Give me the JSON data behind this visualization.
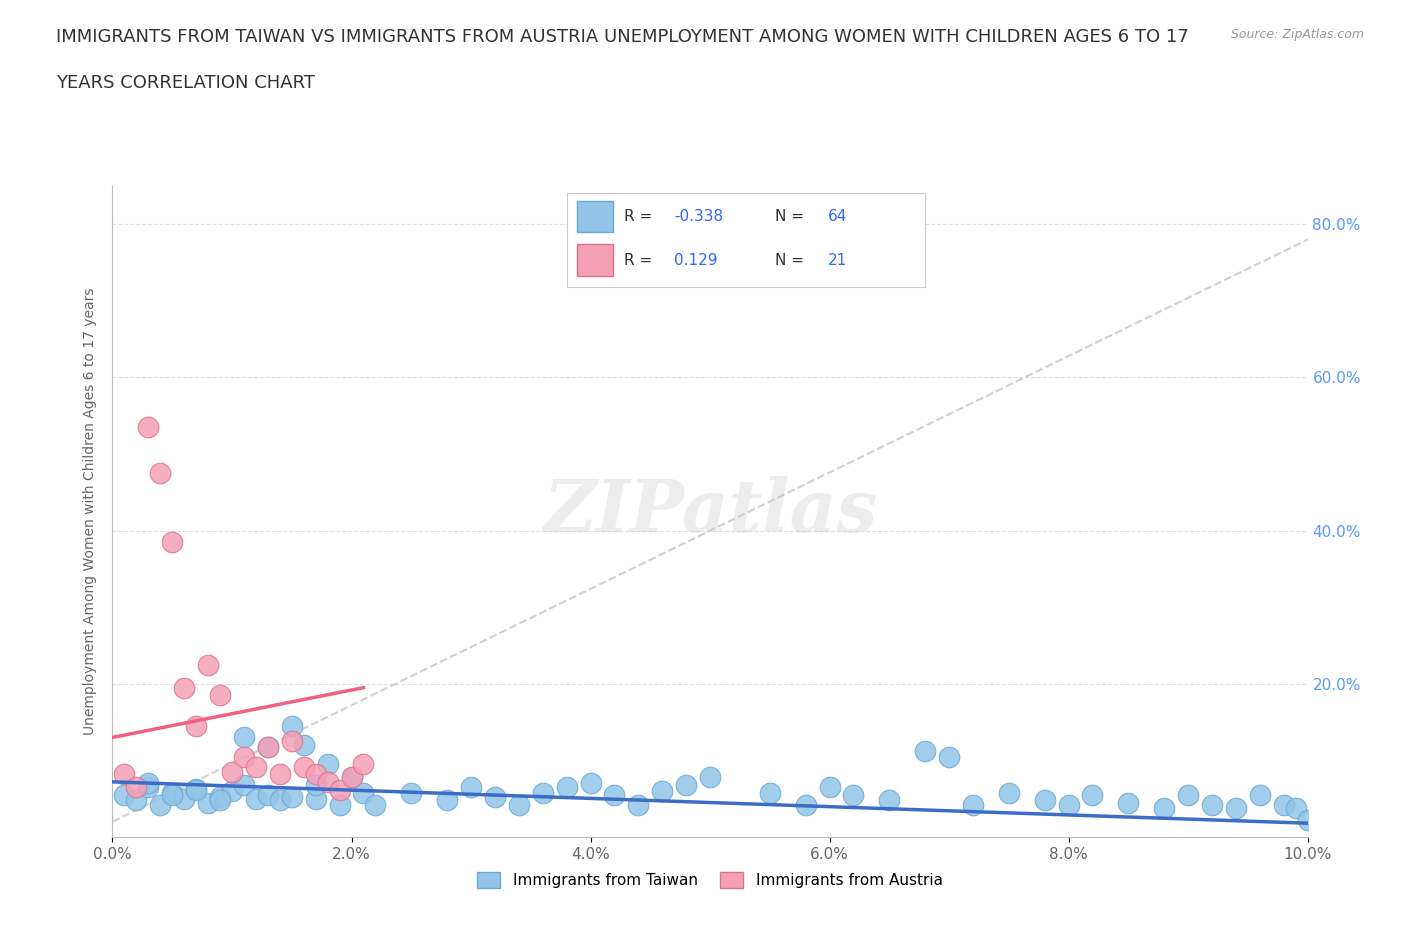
{
  "title_line1": "IMMIGRANTS FROM TAIWAN VS IMMIGRANTS FROM AUSTRIA UNEMPLOYMENT AMONG WOMEN WITH CHILDREN AGES 6 TO 17",
  "title_line2": "YEARS CORRELATION CHART",
  "source_text": "Source: ZipAtlas.com",
  "ylabel": "Unemployment Among Women with Children Ages 6 to 17 years",
  "xlim": [
    0.0,
    0.1
  ],
  "ylim": [
    0.0,
    0.85
  ],
  "x_tick_labels": [
    "0.0%",
    "2.0%",
    "4.0%",
    "6.0%",
    "8.0%",
    "10.0%"
  ],
  "x_tick_vals": [
    0.0,
    0.02,
    0.04,
    0.06,
    0.08,
    0.1
  ],
  "y_tick_labels": [
    "",
    "20.0%",
    "40.0%",
    "60.0%",
    "80.0%"
  ],
  "y_tick_vals": [
    0.0,
    0.2,
    0.4,
    0.6,
    0.8
  ],
  "taiwan_color": "#92C5E8",
  "austria_color": "#F4A0B5",
  "taiwan_edge_color": "#6AAAD4",
  "austria_edge_color": "#E07090",
  "taiwan_line_color": "#3A6CC8",
  "austria_line_color": "#F06080",
  "dashed_line_color": "#C8C8C8",
  "taiwan_R": -0.338,
  "taiwan_N": 64,
  "austria_R": 0.129,
  "austria_N": 21,
  "watermark": "ZIPatlas",
  "taiwan_scatter_x": [
    0.001,
    0.002,
    0.003,
    0.004,
    0.005,
    0.006,
    0.007,
    0.008,
    0.009,
    0.01,
    0.011,
    0.012,
    0.013,
    0.014,
    0.015,
    0.016,
    0.017,
    0.018,
    0.019,
    0.02,
    0.021,
    0.022,
    0.003,
    0.005,
    0.007,
    0.009,
    0.011,
    0.013,
    0.015,
    0.017,
    0.025,
    0.028,
    0.03,
    0.032,
    0.034,
    0.036,
    0.038,
    0.04,
    0.042,
    0.044,
    0.046,
    0.048,
    0.05,
    0.055,
    0.058,
    0.06,
    0.062,
    0.065,
    0.068,
    0.07,
    0.072,
    0.075,
    0.078,
    0.08,
    0.082,
    0.085,
    0.088,
    0.09,
    0.092,
    0.094,
    0.096,
    0.098,
    0.099,
    0.1
  ],
  "taiwan_scatter_y": [
    0.055,
    0.048,
    0.065,
    0.042,
    0.058,
    0.05,
    0.063,
    0.045,
    0.052,
    0.06,
    0.068,
    0.05,
    0.055,
    0.048,
    0.145,
    0.12,
    0.05,
    0.095,
    0.042,
    0.078,
    0.058,
    0.042,
    0.07,
    0.055,
    0.062,
    0.048,
    0.13,
    0.118,
    0.052,
    0.068,
    0.058,
    0.048,
    0.065,
    0.052,
    0.042,
    0.058,
    0.065,
    0.07,
    0.055,
    0.042,
    0.06,
    0.068,
    0.078,
    0.058,
    0.042,
    0.065,
    0.055,
    0.048,
    0.112,
    0.105,
    0.042,
    0.058,
    0.048,
    0.042,
    0.055,
    0.045,
    0.038,
    0.055,
    0.042,
    0.038,
    0.055,
    0.042,
    0.038,
    0.022
  ],
  "austria_scatter_x": [
    0.001,
    0.002,
    0.003,
    0.004,
    0.005,
    0.006,
    0.007,
    0.008,
    0.009,
    0.01,
    0.011,
    0.012,
    0.013,
    0.014,
    0.015,
    0.016,
    0.017,
    0.018,
    0.019,
    0.02,
    0.021
  ],
  "austria_scatter_y": [
    0.082,
    0.065,
    0.535,
    0.475,
    0.385,
    0.195,
    0.145,
    0.225,
    0.185,
    0.085,
    0.105,
    0.092,
    0.118,
    0.082,
    0.125,
    0.092,
    0.082,
    0.072,
    0.062,
    0.078,
    0.095
  ],
  "taiwan_line_x0": 0.0,
  "taiwan_line_x1": 0.1,
  "taiwan_line_y0": 0.072,
  "taiwan_line_y1": 0.018,
  "austria_line_x0": 0.0,
  "austria_line_x1": 0.021,
  "austria_line_y0": 0.13,
  "austria_line_y1": 0.195,
  "dashed_line_x0": 0.0,
  "dashed_line_x1": 0.1,
  "dashed_line_y0": 0.02,
  "dashed_line_y1": 0.78
}
